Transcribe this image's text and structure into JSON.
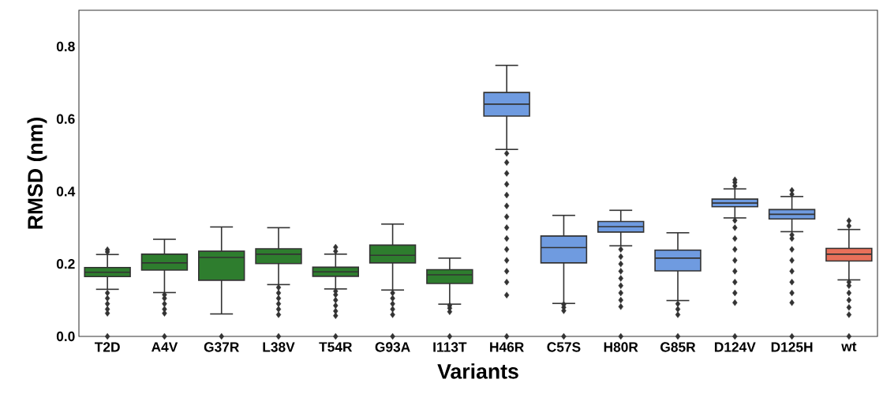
{
  "chart_data": {
    "type": "box",
    "xlabel": "Variants",
    "ylabel": "RMSD (nm)",
    "categories": [
      "T2D",
      "A4V",
      "G37R",
      "L38V",
      "T54R",
      "G93A",
      "I113T",
      "H46R",
      "C57S",
      "H80R",
      "G85R",
      "D124V",
      "D125H",
      "wt"
    ],
    "colors": [
      "#2e7d2e",
      "#2e7d2e",
      "#2e7d2e",
      "#2e7d2e",
      "#2e7d2e",
      "#2e7d2e",
      "#2e7d2e",
      "#6f9be0",
      "#6f9be0",
      "#6f9be0",
      "#6f9be0",
      "#6f9be0",
      "#6f9be0",
      "#e8705a"
    ],
    "boxes": [
      {
        "low": 0.13,
        "q1": 0.165,
        "median": 0.177,
        "q3": 0.19,
        "high": 0.226,
        "outliers": [
          0.0,
          0.064,
          0.075,
          0.09,
          0.105,
          0.12,
          0.233,
          0.239
        ]
      },
      {
        "low": 0.121,
        "q1": 0.183,
        "median": 0.203,
        "q3": 0.227,
        "high": 0.268,
        "outliers": [
          0.0,
          0.064,
          0.075,
          0.09,
          0.105,
          0.115
        ]
      },
      {
        "low": 0.062,
        "q1": 0.155,
        "median": 0.218,
        "q3": 0.235,
        "high": 0.302,
        "outliers": [
          0.0
        ]
      },
      {
        "low": 0.143,
        "q1": 0.201,
        "median": 0.227,
        "q3": 0.242,
        "high": 0.3,
        "outliers": [
          0.0,
          0.06,
          0.075,
          0.09,
          0.105,
          0.12,
          0.135
        ]
      },
      {
        "low": 0.131,
        "q1": 0.166,
        "median": 0.178,
        "q3": 0.191,
        "high": 0.227,
        "outliers": [
          0.0,
          0.057,
          0.07,
          0.085,
          0.1,
          0.115,
          0.125,
          0.235,
          0.246
        ]
      },
      {
        "low": 0.128,
        "q1": 0.203,
        "median": 0.224,
        "q3": 0.252,
        "high": 0.31,
        "outliers": [
          0.0,
          0.06,
          0.075,
          0.09,
          0.105,
          0.12
        ]
      },
      {
        "low": 0.089,
        "q1": 0.146,
        "median": 0.17,
        "q3": 0.184,
        "high": 0.216,
        "outliers": [
          0.0,
          0.068,
          0.078,
          0.085
        ]
      },
      {
        "low": 0.516,
        "q1": 0.608,
        "median": 0.641,
        "q3": 0.673,
        "high": 0.748,
        "outliers": [
          0.0,
          0.114,
          0.15,
          0.18,
          0.21,
          0.24,
          0.27,
          0.3,
          0.33,
          0.36,
          0.39,
          0.42,
          0.45,
          0.48,
          0.505
        ]
      },
      {
        "low": 0.091,
        "q1": 0.203,
        "median": 0.245,
        "q3": 0.277,
        "high": 0.334,
        "outliers": [
          0.0,
          0.071,
          0.08,
          0.088
        ]
      },
      {
        "low": 0.25,
        "q1": 0.288,
        "median": 0.303,
        "q3": 0.317,
        "high": 0.348,
        "outliers": [
          0.0,
          0.082,
          0.1,
          0.12,
          0.14,
          0.16,
          0.18,
          0.2,
          0.22,
          0.24
        ]
      },
      {
        "low": 0.099,
        "q1": 0.181,
        "median": 0.216,
        "q3": 0.238,
        "high": 0.286,
        "outliers": [
          0.0,
          0.06,
          0.075,
          0.09
        ]
      },
      {
        "low": 0.327,
        "q1": 0.358,
        "median": 0.368,
        "q3": 0.379,
        "high": 0.407,
        "outliers": [
          0.0,
          0.093,
          0.12,
          0.15,
          0.18,
          0.21,
          0.24,
          0.27,
          0.3,
          0.32,
          0.415,
          0.425,
          0.432
        ]
      },
      {
        "low": 0.289,
        "q1": 0.324,
        "median": 0.337,
        "q3": 0.35,
        "high": 0.386,
        "outliers": [
          0.0,
          0.093,
          0.12,
          0.15,
          0.18,
          0.21,
          0.24,
          0.27,
          0.28,
          0.392,
          0.403
        ]
      },
      {
        "low": 0.156,
        "q1": 0.208,
        "median": 0.227,
        "q3": 0.243,
        "high": 0.295,
        "outliers": [
          0.0,
          0.06,
          0.08,
          0.1,
          0.12,
          0.14,
          0.15,
          0.305,
          0.319
        ]
      }
    ],
    "ylim": [
      0,
      0.9
    ],
    "yticks": [
      {
        "value": 0,
        "label": "0.0"
      },
      {
        "value": 0.2,
        "label": "0.2"
      },
      {
        "value": 0.4,
        "label": "0.4"
      },
      {
        "value": 0.6,
        "label": "0.6"
      },
      {
        "value": 0.8,
        "label": "0.8"
      }
    ],
    "grid": false
  }
}
